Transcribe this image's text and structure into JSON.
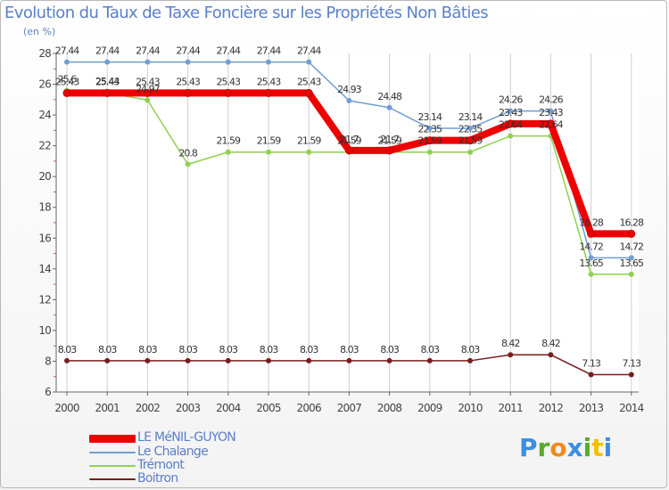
{
  "chart_data": {
    "type": "line",
    "title": "Evolution du Taux de Taxe Foncière sur les Propriétés Non Bâties",
    "ylabel": "(en %)",
    "xlabel": "",
    "x": [
      "2000",
      "2001",
      "2002",
      "2003",
      "2004",
      "2005",
      "2006",
      "2007",
      "2008",
      "2009",
      "2010",
      "2011",
      "2012",
      "2013",
      "2014"
    ],
    "ylim": [
      6,
      28
    ],
    "yticks": [
      "6",
      "8",
      "10",
      "12",
      "14",
      "16",
      "18",
      "20",
      "22",
      "24",
      "26",
      "28"
    ],
    "series": [
      {
        "name": "LE MéNIL-GUYON",
        "color": "#ee0000",
        "values": [
          25.43,
          25.43,
          25.43,
          25.43,
          25.43,
          25.43,
          25.43,
          21.7,
          21.7,
          22.35,
          22.35,
          23.43,
          23.43,
          16.28,
          16.28
        ],
        "labels": [
          "25.43",
          "25.43",
          "25.43",
          "25.43",
          "25.43",
          "25.43",
          "25.43",
          "21.7",
          "21.7",
          "22.35",
          "22.35",
          "23.43",
          "23.43",
          "16.28",
          "16.28"
        ]
      },
      {
        "name": "Le Chalange",
        "color": "#6f9fd4",
        "values": [
          27.44,
          27.44,
          27.44,
          27.44,
          27.44,
          27.44,
          27.44,
          24.93,
          24.48,
          23.14,
          23.14,
          24.26,
          24.26,
          14.72,
          14.72
        ],
        "labels": [
          "27.44",
          "27.44",
          "27.44",
          "27.44",
          "27.44",
          "27.44",
          "27.44",
          "24.93",
          "24.48",
          "23.14",
          "23.14",
          "24.26",
          "24.26",
          "14.72",
          "14.72"
        ]
      },
      {
        "name": "Trémont",
        "color": "#8fd14f",
        "values": [
          25.6,
          25.44,
          24.97,
          20.8,
          21.59,
          21.59,
          21.59,
          21.59,
          21.59,
          21.59,
          21.59,
          22.64,
          22.64,
          13.65,
          13.65
        ],
        "labels": [
          "25.6",
          "25.44",
          "24.97",
          "20.8",
          "21.59",
          "21.59",
          "21.59",
          "21.59",
          "21.59",
          "21.59",
          "21.59",
          "22.64",
          "22.64",
          "13.65",
          "13.65"
        ]
      },
      {
        "name": "Boitron",
        "color": "#7a1c1c",
        "values": [
          8.03,
          8.03,
          8.03,
          8.03,
          8.03,
          8.03,
          8.03,
          8.03,
          8.03,
          8.03,
          8.03,
          8.42,
          8.42,
          7.13,
          7.13
        ],
        "labels": [
          "8.03",
          "8.03",
          "8.03",
          "8.03",
          "8.03",
          "8.03",
          "8.03",
          "8.03",
          "8.03",
          "8.03",
          "8.03",
          "8.42",
          "8.42",
          "7.13",
          "7.13"
        ]
      }
    ],
    "legend": [
      "LE MéNIL-GUYON",
      "Le Chalange",
      "Trémont",
      "Boitron"
    ]
  },
  "brand": {
    "letters": [
      "P",
      "r",
      "o",
      "x",
      "i",
      "t",
      "i"
    ],
    "colors": [
      "#3c8fe0",
      "#5aaa2a",
      "#f08a1c",
      "#3c8fe0",
      "#5aaa2a",
      "#f0c000",
      "#3c8fe0"
    ]
  }
}
